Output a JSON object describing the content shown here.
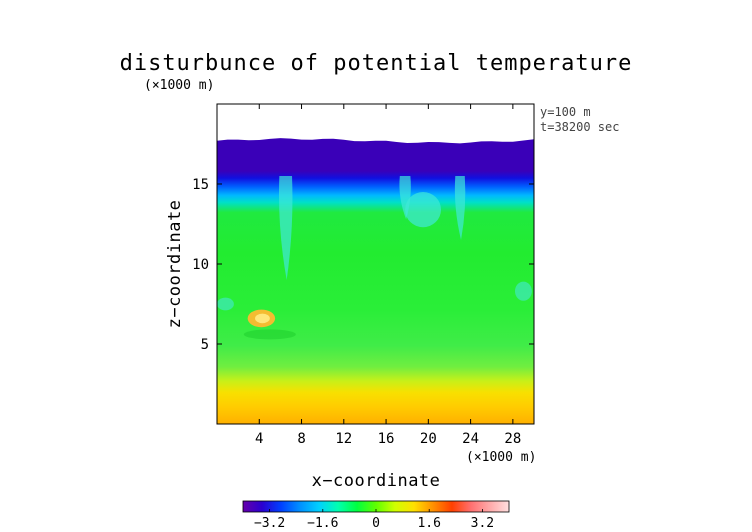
{
  "chart_data": {
    "type": "heatmap",
    "title": "disturbunce of potential temperature",
    "xlabel": "x−coordinate",
    "ylabel": "z−coordinate",
    "x_unit": "(×1000 m)",
    "y_unit": "(×1000 m)",
    "xlim": [
      0,
      30
    ],
    "ylim": [
      0,
      20
    ],
    "x_ticks": [
      4,
      8,
      12,
      16,
      20,
      24,
      28
    ],
    "x_tick_labels": [
      "4",
      "8",
      "12",
      "16",
      "20",
      "24",
      "28"
    ],
    "y_ticks": [
      5,
      10,
      15
    ],
    "y_tick_labels": [
      "5",
      "10",
      "15"
    ],
    "annotations": [
      "y=100 m",
      "t=38200 sec"
    ],
    "colorbar": {
      "range": [
        -4,
        4
      ],
      "ticks": [
        -3.2,
        -1.6,
        0,
        1.6,
        3.2
      ],
      "tick_labels": [
        "−3.2",
        "−1.6",
        "0",
        "1.6",
        "3.2"
      ],
      "colors": [
        "#6600aa",
        "#2a00d0",
        "#0040ff",
        "#0090ff",
        "#00d0ff",
        "#00ffb0",
        "#00ff40",
        "#60ff00",
        "#d0ff00",
        "#ffe000",
        "#ff9000",
        "#ff4000",
        "#ff7070",
        "#ffaaaa",
        "#ffe0e0"
      ]
    },
    "color_scale": {
      "deep_blue": "#2200c8",
      "blue": "#0050ff",
      "cyan": "#00c8ff",
      "light_cyan": "#40e8d8",
      "green": "#20ee30",
      "light_green": "#50f050",
      "yellow_green": "#b8f020",
      "yellow": "#f8d800",
      "orange": "#ff9a00",
      "white": "#ffffff"
    },
    "model_top_z": 17.7,
    "field_profile_z": [
      {
        "z": 0.0,
        "color": "#ffb000"
      },
      {
        "z": 1.2,
        "color": "#ffcc00"
      },
      {
        "z": 2.2,
        "color": "#f8e000"
      },
      {
        "z": 3.0,
        "color": "#c8f018"
      },
      {
        "z": 4.0,
        "color": "#70ee40"
      },
      {
        "z": 5.5,
        "color": "#40ec48"
      },
      {
        "z": 8.0,
        "color": "#2aee38"
      },
      {
        "z": 12.0,
        "color": "#22ec30"
      },
      {
        "z": 14.8,
        "color": "#20ea40"
      },
      {
        "z": 15.5,
        "color": "#00e0c8"
      },
      {
        "z": 16.0,
        "color": "#00b8ff"
      },
      {
        "z": 16.6,
        "color": "#0060ff"
      },
      {
        "z": 17.2,
        "color": "#1010e0"
      },
      {
        "z": 17.7,
        "color": "#3a00b8"
      }
    ],
    "features": [
      {
        "kind": "warm_anomaly",
        "x": 4.2,
        "z": 6.6,
        "rx": 1.3,
        "rz": 0.55,
        "color": "#ffb830"
      },
      {
        "kind": "warm_core",
        "x": 4.3,
        "z": 6.6,
        "rx": 0.7,
        "rz": 0.3,
        "color": "#ffe880"
      },
      {
        "kind": "cool_plume",
        "x": 6.5,
        "z": 12.5,
        "width": 1.2,
        "top": 15.5,
        "bottom": 9.0,
        "color": "#40e8d8"
      },
      {
        "kind": "cool_plume",
        "x": 17.8,
        "z": 14.0,
        "width": 1.0,
        "top": 15.5,
        "bottom": 12.8,
        "color": "#40e8d8"
      },
      {
        "kind": "cool_eddy",
        "x": 19.5,
        "z": 13.4,
        "rx": 1.7,
        "rz": 1.1,
        "color": "#40e8d8"
      },
      {
        "kind": "cool_plume",
        "x": 23.0,
        "z": 13.0,
        "width": 0.9,
        "top": 15.5,
        "bottom": 11.5,
        "color": "#40e8d8"
      },
      {
        "kind": "cool_patch",
        "x": 0.8,
        "z": 7.5,
        "rx": 0.8,
        "rz": 0.4,
        "color": "#40e8c0"
      },
      {
        "kind": "cool_patch",
        "x": 29.0,
        "z": 8.3,
        "rx": 0.8,
        "rz": 0.6,
        "color": "#40e8c0"
      }
    ]
  }
}
